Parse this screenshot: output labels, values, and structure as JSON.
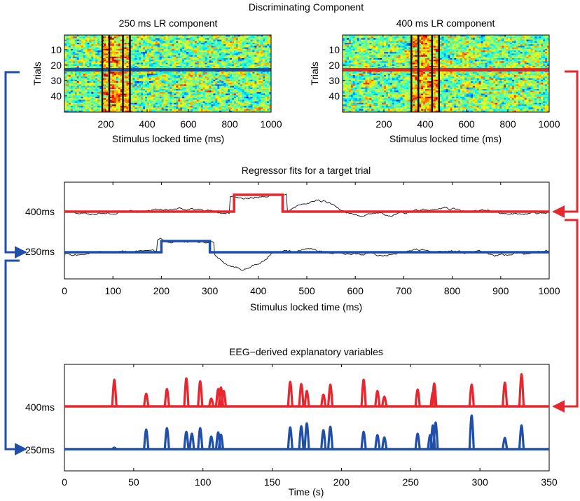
{
  "title": "Discriminating Component",
  "colors": {
    "red": "#e8262d",
    "blue": "#1f4fa8",
    "trace": "#111111",
    "marker": "#111111"
  },
  "chart_data": [
    {
      "type": "heatmap",
      "title": "250 ms LR component",
      "xlabel": "Stimulus locked time (ms)",
      "ylabel": "Trials",
      "xlim": [
        0,
        1000
      ],
      "ylim": [
        1,
        50
      ],
      "xticks": [
        200,
        400,
        600,
        800,
        1000
      ],
      "yticks": [
        10,
        20,
        30,
        40
      ],
      "highlight_trial": 23,
      "highlight_color": "blue",
      "marker_times": [
        200,
        300
      ]
    },
    {
      "type": "heatmap",
      "title": "400 ms LR component",
      "xlabel": "Stimulus locked time (ms)",
      "ylabel": "Trials",
      "xlim": [
        0,
        1000
      ],
      "ylim": [
        1,
        50
      ],
      "xticks": [
        200,
        400,
        600,
        800,
        1000
      ],
      "yticks": [
        10,
        20,
        30,
        40
      ],
      "highlight_trial": 23,
      "highlight_color": "red",
      "marker_times": [
        350,
        450
      ]
    },
    {
      "type": "line",
      "title": "Regressor fits for a target trial",
      "xlabel": "Stimulus locked time (ms)",
      "xlim": [
        0,
        1000
      ],
      "xticks": [
        0,
        100,
        200,
        300,
        400,
        500,
        600,
        700,
        800,
        900,
        1000
      ],
      "series": [
        {
          "name": "400ms",
          "color": "red",
          "box": [
            350,
            450
          ]
        },
        {
          "name": "250ms",
          "color": "blue",
          "box": [
            200,
            300
          ]
        }
      ]
    },
    {
      "type": "line",
      "title": "EEG−derived explanatory variables",
      "xlabel": "Time (s)",
      "xlim": [
        0,
        350
      ],
      "xticks": [
        0,
        50,
        100,
        150,
        200,
        250,
        300,
        350
      ],
      "series": [
        {
          "name": "400ms",
          "color": "red",
          "spikes": [
            [
              36,
              0.95
            ],
            [
              59,
              0.45
            ],
            [
              74,
              0.62
            ],
            [
              88,
              1.0
            ],
            [
              98,
              0.9
            ],
            [
              106,
              0.28
            ],
            [
              111,
              0.62
            ],
            [
              113,
              0.68
            ],
            [
              115,
              0.55
            ],
            [
              163,
              0.88
            ],
            [
              171,
              0.8
            ],
            [
              175,
              0.55
            ],
            [
              187,
              0.42
            ],
            [
              192,
              0.78
            ],
            [
              216,
              0.95
            ],
            [
              226,
              0.55
            ],
            [
              231,
              0.35
            ],
            [
              255,
              0.6
            ],
            [
              266,
              0.5
            ],
            [
              267,
              0.82
            ],
            [
              294,
              0.78
            ],
            [
              318,
              0.85
            ],
            [
              330,
              1.15
            ]
          ]
        },
        {
          "name": "250ms",
          "color": "blue",
          "spikes": [
            [
              36,
              0.05
            ],
            [
              59,
              0.7
            ],
            [
              74,
              0.75
            ],
            [
              88,
              0.62
            ],
            [
              92,
              0.55
            ],
            [
              98,
              0.75
            ],
            [
              106,
              0.45
            ],
            [
              111,
              0.6
            ],
            [
              113,
              0.52
            ],
            [
              163,
              0.78
            ],
            [
              171,
              0.82
            ],
            [
              175,
              0.92
            ],
            [
              187,
              0.68
            ],
            [
              192,
              0.8
            ],
            [
              216,
              0.62
            ],
            [
              226,
              0.5
            ],
            [
              231,
              0.42
            ],
            [
              255,
              0.55
            ],
            [
              264,
              0.5
            ],
            [
              266,
              0.85
            ],
            [
              268,
              0.95
            ],
            [
              294,
              1.2
            ],
            [
              318,
              0.4
            ],
            [
              330,
              0.85
            ]
          ]
        }
      ]
    }
  ]
}
